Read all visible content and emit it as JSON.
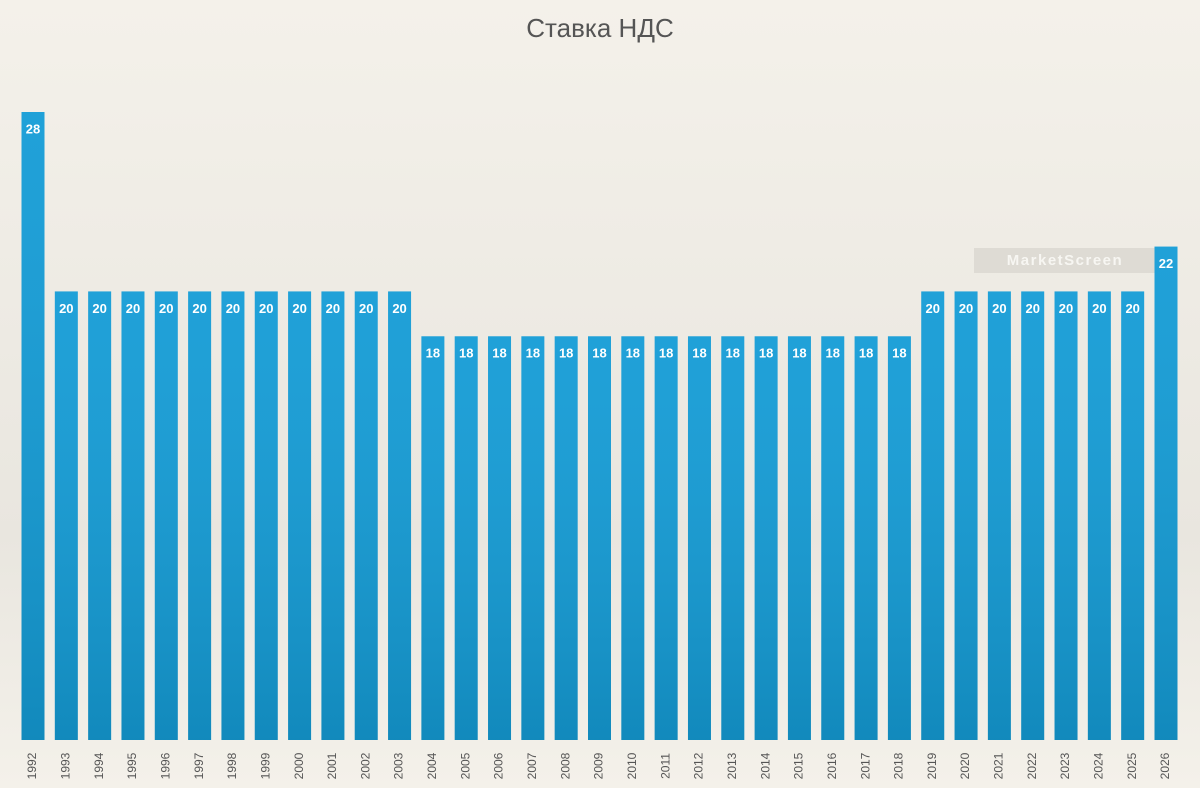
{
  "chart_data": {
    "type": "bar",
    "title": "Ставка НДС",
    "categories": [
      "1992",
      "1993",
      "1994",
      "1995",
      "1996",
      "1997",
      "1998",
      "1999",
      "2000",
      "2001",
      "2002",
      "2003",
      "2004",
      "2005",
      "2006",
      "2007",
      "2008",
      "2009",
      "2010",
      "2011",
      "2012",
      "2013",
      "2014",
      "2015",
      "2016",
      "2017",
      "2018",
      "2019",
      "2020",
      "2021",
      "2022",
      "2023",
      "2024",
      "2025",
      "2026"
    ],
    "values": [
      28,
      20,
      20,
      20,
      20,
      20,
      20,
      20,
      20,
      20,
      20,
      20,
      18,
      18,
      18,
      18,
      18,
      18,
      18,
      18,
      18,
      18,
      18,
      18,
      18,
      18,
      18,
      20,
      20,
      20,
      20,
      20,
      20,
      20,
      22
    ],
    "color": "#149cd6",
    "watermark": "MarketScreen"
  }
}
